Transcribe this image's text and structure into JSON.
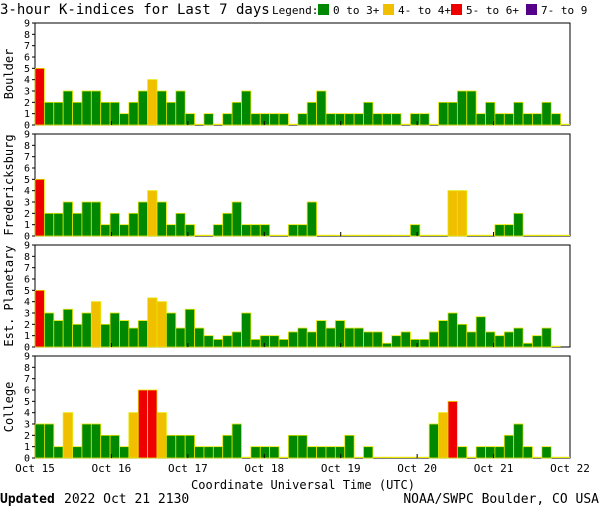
{
  "chart_data": {
    "type": "bar",
    "title": "3-hour K-indices for Last 7 days",
    "xlabel": "Coordinate Universal Time (UTC)",
    "legend": {
      "label": "Legend:",
      "position": "top-right",
      "items": [
        {
          "label": "0 to 3+",
          "color": "#008800"
        },
        {
          "label": "4- to 4+",
          "color": "#f0c000"
        },
        {
          "label": "5- to 6+",
          "color": "#ee0000"
        },
        {
          "label": "7- to 9",
          "color": "#550088"
        }
      ]
    },
    "bar_outline_color": "#e6e600",
    "ylim": [
      0,
      9
    ],
    "yticks": [
      "0",
      "1",
      "2",
      "3",
      "4",
      "5",
      "6",
      "7",
      "8",
      "9"
    ],
    "xticks": [
      "Oct 15",
      "Oct 16",
      "Oct 17",
      "Oct 18",
      "Oct 19",
      "Oct 20",
      "Oct 21",
      "Oct 22"
    ],
    "grid": false,
    "panels": [
      {
        "name": "Boulder",
        "values": [
          5,
          2,
          2,
          3,
          2,
          3,
          3,
          2,
          2,
          1,
          2,
          3,
          4,
          3,
          2,
          3,
          1,
          0,
          1,
          0,
          1,
          2,
          3,
          1,
          1,
          1,
          1,
          0,
          1,
          2,
          3,
          1,
          1,
          1,
          1,
          2,
          1,
          1,
          1,
          0,
          1,
          1,
          0,
          2,
          2,
          3,
          3,
          1,
          2,
          1,
          1,
          2,
          1,
          1,
          2,
          1,
          0
        ]
      },
      {
        "name": "Fredericksburg",
        "values": [
          5,
          2,
          2,
          3,
          2,
          3,
          3,
          1,
          2,
          1,
          2,
          3,
          4,
          3,
          1,
          2,
          1,
          0,
          0,
          1,
          2,
          3,
          1,
          1,
          1,
          0,
          0,
          1,
          1,
          3,
          0,
          0,
          0,
          0,
          0,
          0,
          0,
          0,
          0,
          0,
          1,
          0,
          0,
          0,
          4,
          4,
          0,
          0,
          0,
          1,
          1,
          2,
          0,
          0,
          0,
          0,
          0
        ]
      },
      {
        "name": "Est. Planetary",
        "values": [
          5,
          3,
          2.33,
          3.33,
          2,
          3,
          4,
          2,
          3,
          2.33,
          1.67,
          2.33,
          4.33,
          4,
          3,
          1.67,
          3.33,
          1.67,
          1,
          0.67,
          1,
          1.33,
          3,
          0.67,
          1,
          1,
          0.67,
          1.33,
          1.67,
          1.33,
          2.33,
          1.67,
          2.33,
          1.67,
          1.67,
          1.33,
          1.33,
          0.33,
          1,
          1.33,
          0.67,
          0.67,
          1.33,
          2.33,
          3,
          2,
          1.33,
          2.67,
          1.33,
          1,
          1.33,
          1.67,
          0.33,
          1,
          1.67,
          0
        ]
      },
      {
        "name": "College",
        "values": [
          3,
          3,
          1,
          4,
          1,
          3,
          3,
          2,
          2,
          1,
          4,
          6,
          6,
          4,
          2,
          2,
          2,
          1,
          1,
          1,
          2,
          3,
          0,
          1,
          1,
          1,
          0,
          2,
          2,
          1,
          1,
          1,
          1,
          2,
          0,
          1,
          0,
          0,
          0,
          0,
          0,
          0,
          3,
          4,
          5,
          1,
          0,
          1,
          1,
          1,
          2,
          3,
          1,
          0,
          1,
          0,
          0
        ]
      }
    ]
  },
  "footer": {
    "updated_label": "Updated",
    "updated_value": "2022 Oct 21 2130",
    "source": "NOAA/SWPC Boulder, CO USA"
  }
}
